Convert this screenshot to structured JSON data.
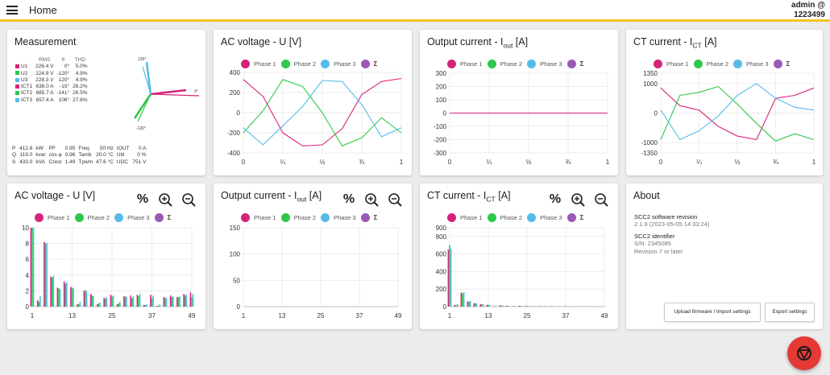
{
  "header": {
    "title": "Home",
    "user": "admin @",
    "user_id": "1223499",
    "accent": "#f5c518"
  },
  "colors": {
    "phase1": "#d6237a",
    "phase2": "#2ec94a",
    "phase3": "#55bbe8",
    "sigma": "#9b59b6"
  },
  "icons": {
    "menu": "hamburger-icon",
    "percent": "percent-icon",
    "zoom_in": "zoom-in-icon",
    "zoom_out": "zoom-out-icon",
    "fab": "stop-icon"
  },
  "measurement": {
    "title": "Measurement",
    "table_headers": [
      "RMS",
      "θ",
      "THD"
    ],
    "rows": [
      {
        "label": "U1",
        "rms": "226.4 V",
        "theta": "0°",
        "thd": "5.0%"
      },
      {
        "label": "U2",
        "rms": "224.9 V",
        "theta": "-120°",
        "thd": "4.9%"
      },
      {
        "label": "U3",
        "rms": "228.3 V",
        "theta": "120°",
        "thd": "4.9%"
      },
      {
        "label": "ICT1",
        "rms": "638.0 A",
        "theta": "-15°",
        "thd": "26.2%"
      },
      {
        "label": "ICT2",
        "rms": "685.7 A",
        "theta": "-141°",
        "thd": "26.5%"
      },
      {
        "label": "ICT3",
        "rms": "657.4 A",
        "theta": "106°",
        "thd": "27.6%"
      }
    ],
    "phasor_labels": [
      "120°",
      "0°",
      "-120°"
    ],
    "stats": [
      [
        "P",
        "412.6",
        "kW",
        "PF",
        "0.95",
        "Freq",
        "50 Hz",
        "IOUT",
        "0 A"
      ],
      [
        "Q",
        "119.0",
        "kvar",
        "cos φ",
        "0.96",
        "Tamb",
        "20.0 °C",
        "Util",
        "0 %"
      ],
      [
        "S",
        "433.0",
        "kVA",
        "Crest",
        "1.49",
        "Tpwm",
        "47.6 °C",
        "UDC",
        "751 V"
      ]
    ]
  },
  "legend": {
    "phase1": "Phase 1",
    "phase2": "Phase 2",
    "phase3": "Phase 3",
    "sigma": "Σ"
  },
  "wave_ticks": {
    "x": [
      "0",
      "¼",
      "½",
      "¾",
      "1"
    ]
  },
  "ac_voltage_wave": {
    "title": "AC voltage - U [V]",
    "yticks": [
      "400",
      "200",
      "0",
      "-200",
      "-400"
    ]
  },
  "output_current_wave": {
    "title_main": "Output current - I",
    "title_sub": "out",
    "title_unit": "[A]",
    "yticks": [
      "300",
      "200",
      "100",
      "0",
      "-100",
      "-200",
      "-300"
    ]
  },
  "ct_current_wave": {
    "title_main": "CT current - I",
    "title_sub": "CT",
    "title_unit": "[A]",
    "yticks": [
      "1350",
      "1000",
      "0",
      "-1000",
      "-1350"
    ]
  },
  "ac_voltage_harm": {
    "title": "AC voltage - U [V]",
    "yticks": [
      "10",
      "8",
      "6",
      "4",
      "2",
      "0"
    ]
  },
  "output_current_harm": {
    "title_main": "Output current - I",
    "title_sub": "out",
    "title_unit": "[A]",
    "yticks": [
      "150",
      "100",
      "50",
      "0"
    ]
  },
  "ct_current_harm": {
    "title_main": "CT current - I",
    "title_sub": "CT",
    "title_unit": "[A]",
    "yticks": [
      "900",
      "800",
      "600",
      "400",
      "200",
      "0"
    ]
  },
  "harm_ticks": {
    "x": [
      "1",
      "13",
      "25",
      "37",
      "49"
    ]
  },
  "about": {
    "title": "About",
    "sw_label": "SCC2 software revision",
    "sw_value": "2.1.9 (2023-05-05 14:33:24)",
    "id_label": "SCC2 identifier",
    "sn": "S/N: 2345085",
    "revision": "Revision 7 or later",
    "upload_button": "Upload firmware / Import settings",
    "export_button": "Export settings"
  },
  "chart_data": [
    {
      "type": "line",
      "title": "AC voltage - U [V]",
      "x": [
        0,
        0.125,
        0.25,
        0.375,
        0.5,
        0.625,
        0.75,
        0.875,
        1
      ],
      "ylim": [
        -400,
        400
      ],
      "series": [
        {
          "name": "Phase 1",
          "values": [
            330,
            160,
            -200,
            -330,
            -320,
            -160,
            180,
            310,
            340
          ]
        },
        {
          "name": "Phase 2",
          "values": [
            -200,
            20,
            330,
            260,
            0,
            -330,
            -250,
            -50,
            -200
          ]
        },
        {
          "name": "Phase 3",
          "values": [
            -150,
            -320,
            -130,
            60,
            320,
            310,
            80,
            -240,
            -150
          ]
        }
      ]
    },
    {
      "type": "line",
      "title": "Output current - Iout [A]",
      "x": [
        0,
        0.25,
        0.5,
        0.75,
        1
      ],
      "ylim": [
        -300,
        300
      ],
      "series": [
        {
          "name": "Phase 1",
          "values": [
            0,
            0,
            0,
            0,
            0
          ]
        }
      ]
    },
    {
      "type": "line",
      "title": "CT current - ICT [A]",
      "x": [
        0,
        0.125,
        0.25,
        0.375,
        0.5,
        0.625,
        0.75,
        0.875,
        1
      ],
      "ylim": [
        -1350,
        1350
      ],
      "series": [
        {
          "name": "Phase 1",
          "values": [
            850,
            250,
            100,
            -450,
            -780,
            -900,
            500,
            600,
            850
          ]
        },
        {
          "name": "Phase 2",
          "values": [
            -900,
            600,
            700,
            900,
            300,
            -350,
            -950,
            -700,
            -900
          ]
        },
        {
          "name": "Phase 3",
          "values": [
            100,
            -900,
            -600,
            -100,
            600,
            1000,
            500,
            200,
            100
          ]
        }
      ]
    },
    {
      "type": "bar",
      "title": "AC voltage - U [V]",
      "x": [
        1,
        3,
        5,
        7,
        9,
        11,
        13,
        15,
        17,
        19,
        21,
        23,
        25,
        27,
        29,
        31,
        33,
        35,
        37,
        39,
        41,
        43,
        45,
        47,
        49
      ],
      "ylim": [
        0,
        10
      ],
      "series": [
        {
          "name": "Phase 1",
          "values": [
            10,
            0.8,
            8.2,
            3.8,
            2.4,
            3.2,
            2.5,
            0.3,
            2.0,
            1.6,
            0.3,
            1.1,
            1.5,
            0.3,
            1.3,
            1.4,
            1.5,
            0.2,
            1.5,
            0.1,
            1.2,
            1.4,
            1.2,
            1.6,
            1.8
          ]
        },
        {
          "name": "Phase 2",
          "values": [
            10,
            0.6,
            8.0,
            3.7,
            2.3,
            2.9,
            2.3,
            0.3,
            2.1,
            1.4,
            0.4,
            1.0,
            1.3,
            0.4,
            1.3,
            1.1,
            1.3,
            0.2,
            1.1,
            0.1,
            1.1,
            1.2,
            1.2,
            1.4,
            1.2
          ]
        },
        {
          "name": "Phase 3",
          "values": [
            10,
            1.3,
            8.1,
            3.9,
            2.2,
            3.1,
            2.4,
            0.6,
            1.9,
            1.3,
            0.5,
            1.2,
            1.4,
            0.6,
            1.2,
            1.3,
            1.6,
            0.3,
            1.4,
            0.3,
            1.1,
            1.3,
            1.3,
            1.5,
            1.6
          ]
        }
      ]
    },
    {
      "type": "bar",
      "title": "Output current - Iout [A]",
      "x": [
        1,
        13,
        25,
        37,
        49
      ],
      "ylim": [
        0,
        150
      ],
      "series": [
        {
          "name": "Phase 1",
          "values": [
            0,
            0,
            0,
            0,
            0
          ]
        }
      ]
    },
    {
      "type": "bar",
      "title": "CT current - ICT [A]",
      "x": [
        1,
        3,
        5,
        7,
        9,
        11,
        13,
        15,
        17,
        19,
        21,
        23,
        25,
        27,
        29,
        31,
        33,
        35,
        37,
        39,
        41,
        43,
        45,
        47,
        49
      ],
      "ylim": [
        0,
        900
      ],
      "series": [
        {
          "name": "Phase 1",
          "values": [
            650,
            20,
            160,
            60,
            40,
            30,
            20,
            5,
            15,
            10,
            5,
            10,
            8,
            5,
            5,
            5,
            5,
            3,
            5,
            2,
            3,
            3,
            2,
            2,
            2
          ]
        },
        {
          "name": "Phase 2",
          "values": [
            700,
            15,
            150,
            55,
            35,
            25,
            18,
            5,
            12,
            8,
            5,
            8,
            6,
            5,
            5,
            4,
            4,
            3,
            4,
            2,
            3,
            2,
            2,
            2,
            2
          ]
        },
        {
          "name": "Phase 3",
          "values": [
            660,
            30,
            165,
            65,
            38,
            28,
            22,
            6,
            14,
            9,
            6,
            9,
            7,
            5,
            5,
            5,
            5,
            3,
            4,
            2,
            3,
            3,
            2,
            2,
            2
          ]
        }
      ]
    }
  ]
}
